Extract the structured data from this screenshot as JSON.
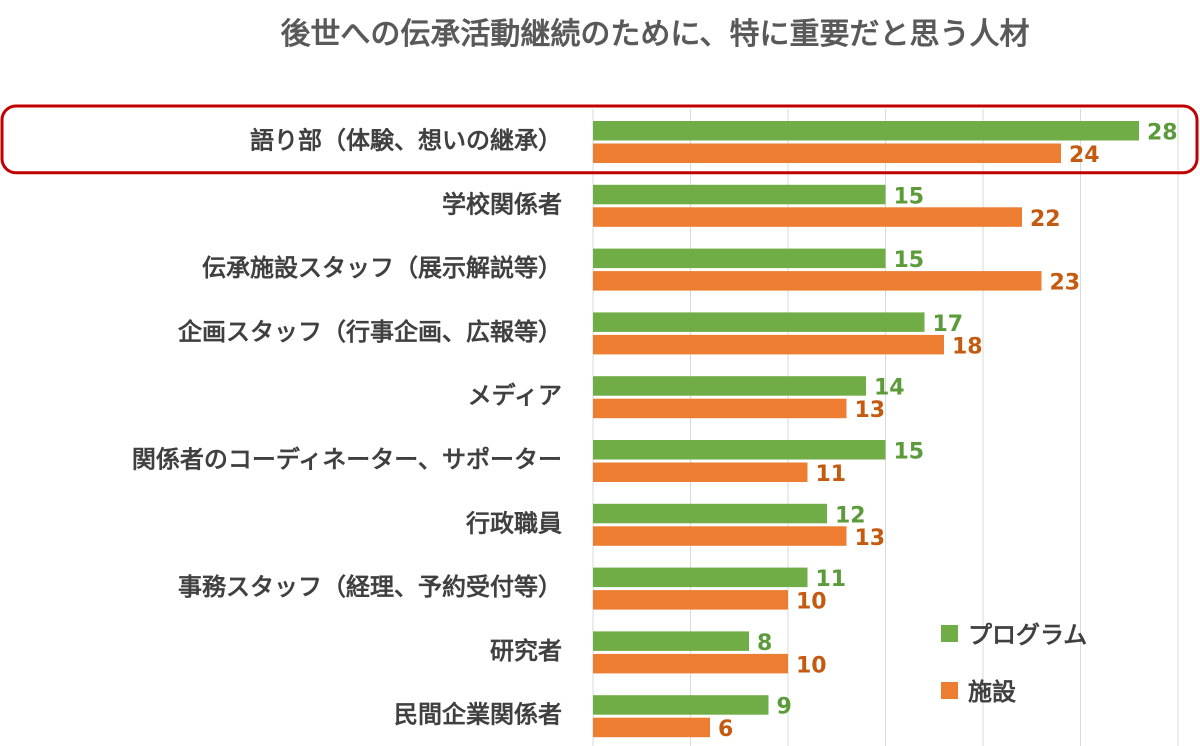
{
  "chart_data": {
    "type": "bar",
    "orientation": "horizontal",
    "title": "後世への伝承活動継続のために、特に重要だと思う人材",
    "categories": [
      "語り部（体験、想いの継承）",
      "学校関係者",
      "伝承施設スタッフ（展示解説等）",
      "企画スタッフ（行事企画、広報等）",
      "メディア",
      "関係者のコーディネーター、サポーター",
      "行政職員",
      "事務スタッフ（経理、予約受付等）",
      "研究者",
      "民間企業関係者"
    ],
    "series": [
      {
        "name": "プログラム",
        "color": "#70ad47",
        "values": [
          28,
          15,
          15,
          17,
          14,
          15,
          12,
          11,
          8,
          9
        ]
      },
      {
        "name": "施設",
        "color": "#ed7d31",
        "values": [
          24,
          22,
          23,
          18,
          13,
          11,
          13,
          10,
          10,
          6
        ]
      }
    ],
    "xlim": [
      0,
      30
    ],
    "grid": true,
    "legend_position": "bottom-right",
    "highlighted_category": "語り部（体験、想いの継承）",
    "highlight_color": "#c00000",
    "data_labels": true
  }
}
